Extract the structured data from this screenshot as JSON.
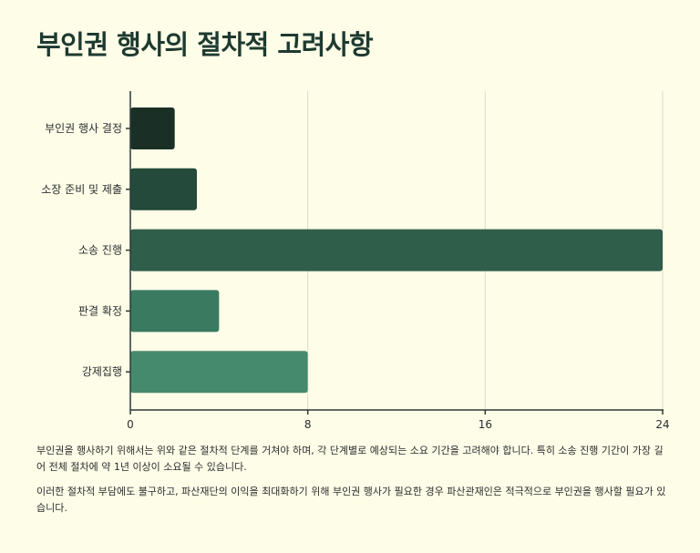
{
  "title": "부인권 행사의 절차적 고려사항",
  "chart_data": {
    "type": "bar",
    "orientation": "horizontal",
    "categories": [
      "부인권 행사 결정",
      "소장 준비 및 제출",
      "소송 진행",
      "판결 확정",
      "강제집행"
    ],
    "values": [
      2,
      3,
      24,
      4,
      8
    ],
    "xlim": [
      0,
      24
    ],
    "xticks": [
      0,
      8,
      16,
      24
    ],
    "grid": true,
    "colors": [
      "#1a3026",
      "#234a3a",
      "#2f5e4b",
      "#3a7a60",
      "#468a6d"
    ],
    "xlabel": "",
    "ylabel": ""
  },
  "notes": [
    "부인권을 행사하기 위해서는 위와 같은 절차적 단계를 거쳐야 하며, 각 단계별로 예상되는 소요 기간을 고려해야 합니다. 특히 소송 진행 기간이 가장 길어 전체 절차에 약 1년 이상이 소요될 수 있습니다.",
    "이러한 절차적 부담에도 불구하고, 파산재단의 이익을 최대화하기 위해 부인권 행사가 필요한 경우 파산관재인은 적극적으로 부인권을 행사할 필요가 있습니다."
  ]
}
